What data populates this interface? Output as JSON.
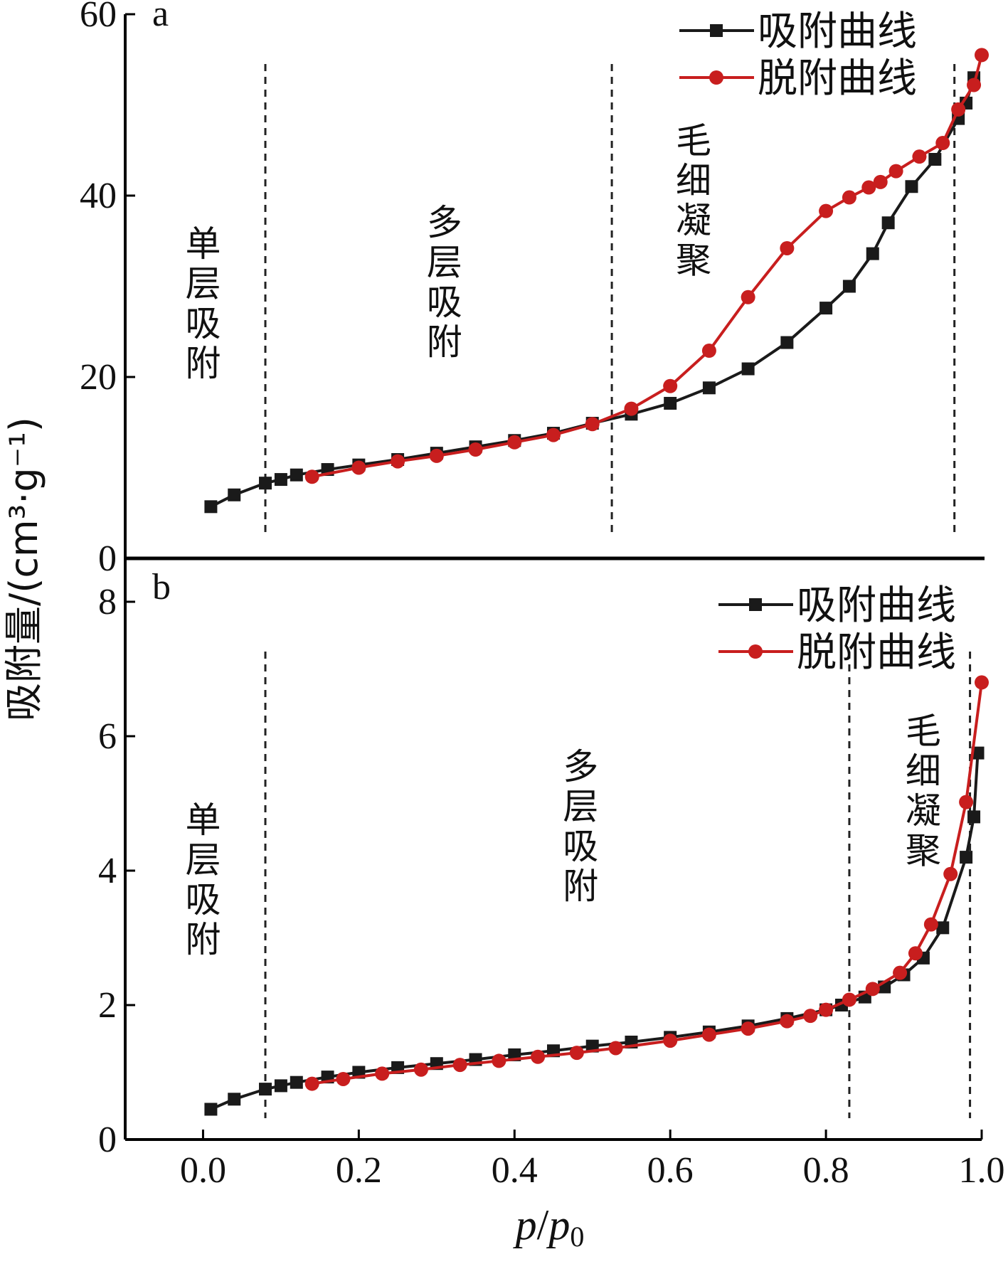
{
  "colors": {
    "adsorption": "#1a1a1a",
    "desorption": "#c81e1e",
    "axis": "#000000"
  },
  "axis": {
    "xlabel_p": "p",
    "xlabel_slash": "/",
    "xlabel_p0": "p",
    "xlabel_sub": "0",
    "ylabel": "吸附量/(cm³·g⁻¹)",
    "xticks": [
      "0.0",
      "0.2",
      "0.4",
      "0.6",
      "0.8",
      "1.0"
    ],
    "xlim": [
      -0.1,
      1.0
    ]
  },
  "chart_data": [
    {
      "type": "line",
      "panel": "a",
      "ylim": [
        0,
        60
      ],
      "yticks": [
        "0",
        "20",
        "40",
        "60"
      ],
      "legend": {
        "placement": "top-right",
        "entries": [
          "吸附曲线",
          "脱附曲线"
        ]
      },
      "region_labels": [
        {
          "text": "单层吸附",
          "x": 0.0
        },
        {
          "text": "多层吸附",
          "x": 0.31
        },
        {
          "text": "毛细凝聚",
          "x": 0.63
        }
      ],
      "boundaries": [
        0.08,
        0.525,
        0.965
      ],
      "series": [
        {
          "name": "吸附曲线",
          "marker": "square",
          "x": [
            0.01,
            0.04,
            0.08,
            0.1,
            0.12,
            0.16,
            0.2,
            0.25,
            0.3,
            0.35,
            0.4,
            0.45,
            0.5,
            0.55,
            0.6,
            0.65,
            0.7,
            0.75,
            0.8,
            0.83,
            0.86,
            0.88,
            0.91,
            0.94,
            0.97,
            0.98,
            0.99
          ],
          "y": [
            5.7,
            7.0,
            8.3,
            8.7,
            9.2,
            9.8,
            10.3,
            10.9,
            11.6,
            12.3,
            13.0,
            13.8,
            14.9,
            15.9,
            17.1,
            18.8,
            20.9,
            23.8,
            27.6,
            30.0,
            33.6,
            37.0,
            41.0,
            44.0,
            48.5,
            50.2,
            53.0
          ]
        },
        {
          "name": "脱附曲线",
          "marker": "circle",
          "x": [
            0.14,
            0.2,
            0.25,
            0.3,
            0.35,
            0.4,
            0.45,
            0.5,
            0.55,
            0.6,
            0.65,
            0.7,
            0.75,
            0.8,
            0.83,
            0.855,
            0.87,
            0.89,
            0.92,
            0.95,
            0.97,
            0.99,
            1.0
          ],
          "y": [
            9.0,
            10.0,
            10.7,
            11.3,
            12.0,
            12.8,
            13.6,
            14.8,
            16.5,
            19.0,
            22.9,
            28.8,
            34.2,
            38.3,
            39.8,
            40.9,
            41.5,
            42.7,
            44.3,
            45.8,
            49.5,
            52.2,
            55.5
          ]
        }
      ]
    },
    {
      "type": "line",
      "panel": "b",
      "ylim": [
        0,
        8
      ],
      "yticks": [
        "0",
        "2",
        "4",
        "6",
        "8"
      ],
      "legend": {
        "placement": "top-right",
        "entries": [
          "吸附曲线",
          "脱附曲线"
        ]
      },
      "region_labels": [
        {
          "text": "单层吸附",
          "x": 0.0
        },
        {
          "text": "多层吸附",
          "x": 0.485
        },
        {
          "text": "毛细凝聚",
          "x": 0.925
        }
      ],
      "boundaries": [
        0.08,
        0.83,
        0.985
      ],
      "series": [
        {
          "name": "吸附曲线",
          "marker": "square",
          "x": [
            0.01,
            0.04,
            0.08,
            0.1,
            0.12,
            0.16,
            0.2,
            0.25,
            0.3,
            0.35,
            0.4,
            0.45,
            0.5,
            0.55,
            0.6,
            0.65,
            0.7,
            0.75,
            0.8,
            0.82,
            0.85,
            0.875,
            0.9,
            0.925,
            0.95,
            0.98,
            0.99,
            0.995
          ],
          "y": [
            0.45,
            0.6,
            0.75,
            0.8,
            0.85,
            0.93,
            1.0,
            1.07,
            1.13,
            1.19,
            1.26,
            1.32,
            1.39,
            1.45,
            1.52,
            1.6,
            1.69,
            1.8,
            1.93,
            2.0,
            2.12,
            2.27,
            2.45,
            2.7,
            3.15,
            4.2,
            4.8,
            5.75
          ]
        },
        {
          "name": "脱附曲线",
          "marker": "circle",
          "x": [
            0.14,
            0.18,
            0.23,
            0.28,
            0.33,
            0.38,
            0.43,
            0.48,
            0.53,
            0.6,
            0.65,
            0.7,
            0.75,
            0.78,
            0.8,
            0.83,
            0.86,
            0.895,
            0.915,
            0.935,
            0.96,
            0.98,
            1.0
          ],
          "y": [
            0.83,
            0.9,
            0.98,
            1.04,
            1.11,
            1.17,
            1.23,
            1.29,
            1.36,
            1.47,
            1.56,
            1.65,
            1.76,
            1.84,
            1.93,
            2.08,
            2.24,
            2.48,
            2.77,
            3.2,
            3.95,
            5.02,
            6.8
          ]
        }
      ]
    }
  ]
}
